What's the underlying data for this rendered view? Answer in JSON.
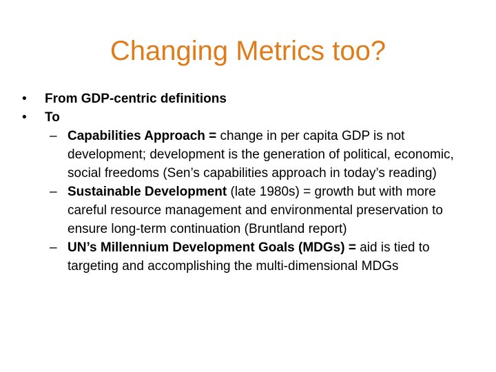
{
  "slide": {
    "title": "Changing Metrics too?",
    "bullet_glyph": "•",
    "dash_glyph": "–",
    "title_color": "#e07b1a",
    "bullets": [
      "From GDP-centric definitions",
      "To"
    ],
    "sub_items": [
      {
        "bold": "Capabilities Approach =",
        "text": " change in per capita GDP is not development; development is the generation of political, economic, social freedoms (Sen’s capabilities approach in today’s reading)"
      },
      {
        "bold": "Sustainable Development",
        "text": " (late 1980s) = growth but with more careful resource management and environmental preservation  to ensure long-term continuation (Bruntland report)"
      },
      {
        "bold": "UN’s Millennium Development Goals (MDGs) =",
        "text": " aid is tied to targeting and accomplishing the multi-dimensional MDGs"
      }
    ]
  }
}
